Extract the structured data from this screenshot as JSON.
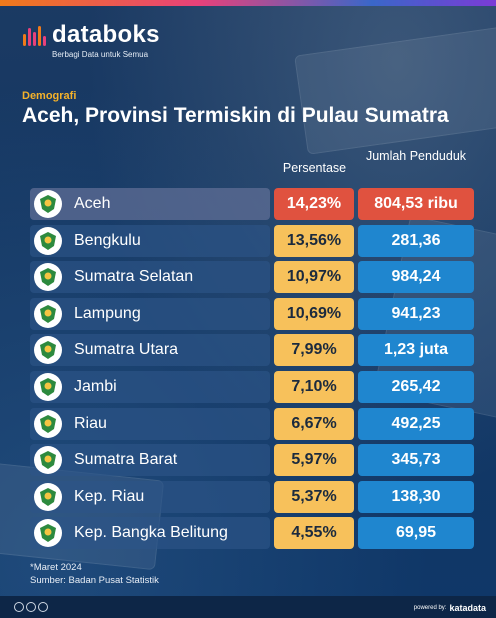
{
  "brand": {
    "name": "databoks",
    "tagline": "Berbagi Data untuk Semua"
  },
  "header": {
    "category": "Demografi",
    "title": "Aceh, Provinsi Termiskin di Pulau Sumatra"
  },
  "columns": {
    "percentage": "Persentase",
    "population": "Jumlah Penduduk"
  },
  "chart_data": {
    "type": "table",
    "title": "Aceh, Provinsi Termiskin di Pulau Sumatra",
    "columns": [
      "Persentase",
      "Jumlah Penduduk"
    ],
    "rows": [
      {
        "province": "Aceh",
        "percentage": "14,23%",
        "population": "804,53 ribu",
        "highlight": true
      },
      {
        "province": "Bengkulu",
        "percentage": "13,56%",
        "population": "281,36",
        "highlight": false
      },
      {
        "province": "Sumatra Selatan",
        "percentage": "10,97%",
        "population": "984,24",
        "highlight": false
      },
      {
        "province": "Lampung",
        "percentage": "10,69%",
        "population": "941,23",
        "highlight": false
      },
      {
        "province": "Sumatra Utara",
        "percentage": "7,99%",
        "population": "1,23 juta",
        "highlight": false
      },
      {
        "province": "Jambi",
        "percentage": "7,10%",
        "population": "265,42",
        "highlight": false
      },
      {
        "province": "Riau",
        "percentage": "6,67%",
        "population": "492,25",
        "highlight": false
      },
      {
        "province": "Sumatra Barat",
        "percentage": "5,97%",
        "population": "345,73",
        "highlight": false
      },
      {
        "province": "Kep. Riau",
        "percentage": "5,37%",
        "population": "138,30",
        "highlight": false
      },
      {
        "province": "Kep. Bangka Belitung",
        "percentage": "4,55%",
        "population": "69,95",
        "highlight": false
      }
    ]
  },
  "colors": {
    "highlight": "#e0523f",
    "percentage_cell": "#f7c15b",
    "population_cell": "#1f86cf",
    "category_text": "#f5b22a"
  },
  "footer": {
    "note": "*Maret 2024",
    "source": "Sumber: Badan Pusat Statistik",
    "powered_by": "powered by:",
    "publisher": "katadata"
  }
}
